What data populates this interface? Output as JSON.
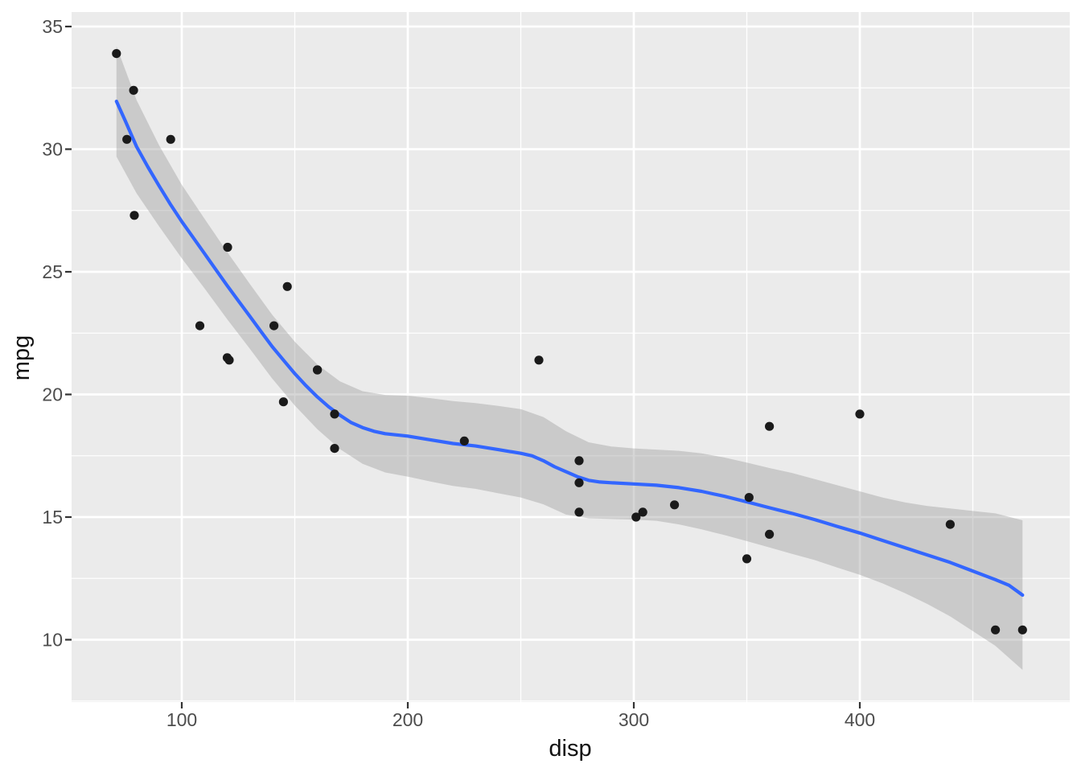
{
  "chart_data": {
    "type": "scatter",
    "title": "",
    "xlabel": "disp",
    "ylabel": "mpg",
    "xlim": [
      51.2,
      492.9
    ],
    "ylim": [
      7.46,
      35.59
    ],
    "grid": "on",
    "legend": "none",
    "x_major_ticks": [
      100,
      200,
      300,
      400
    ],
    "x_minor_ticks": [
      150,
      250,
      350,
      450
    ],
    "y_major_ticks": [
      10,
      15,
      20,
      25,
      30,
      35
    ],
    "y_minor_ticks": [
      7.5,
      12.5,
      17.5,
      22.5,
      27.5,
      32.5
    ],
    "points": [
      [
        160,
        21.0
      ],
      [
        160,
        21.0
      ],
      [
        108,
        22.8
      ],
      [
        258,
        21.4
      ],
      [
        360,
        18.7
      ],
      [
        225,
        18.1
      ],
      [
        360,
        14.3
      ],
      [
        146.7,
        24.4
      ],
      [
        140.8,
        22.8
      ],
      [
        167.6,
        19.2
      ],
      [
        167.6,
        17.8
      ],
      [
        275.8,
        16.4
      ],
      [
        275.8,
        17.3
      ],
      [
        275.8,
        15.2
      ],
      [
        472,
        10.4
      ],
      [
        460,
        10.4
      ],
      [
        440,
        14.7
      ],
      [
        78.7,
        32.4
      ],
      [
        75.7,
        30.4
      ],
      [
        71.1,
        33.9
      ],
      [
        120.1,
        21.5
      ],
      [
        318,
        15.5
      ],
      [
        304,
        15.2
      ],
      [
        350,
        13.3
      ],
      [
        400,
        19.2
      ],
      [
        79,
        27.3
      ],
      [
        120.3,
        26.0
      ],
      [
        95.1,
        30.4
      ],
      [
        351,
        15.8
      ],
      [
        145,
        19.7
      ],
      [
        301,
        15.0
      ],
      [
        121,
        21.4
      ]
    ],
    "smooth_line": [
      [
        71.1,
        31.95
      ],
      [
        75,
        31.15
      ],
      [
        80,
        30.1
      ],
      [
        85,
        29.28
      ],
      [
        90,
        28.5
      ],
      [
        95,
        27.75
      ],
      [
        100,
        27.05
      ],
      [
        105,
        26.4
      ],
      [
        110,
        25.75
      ],
      [
        115,
        25.1
      ],
      [
        120,
        24.45
      ],
      [
        125,
        23.82
      ],
      [
        130,
        23.2
      ],
      [
        135,
        22.57
      ],
      [
        140,
        21.95
      ],
      [
        145,
        21.4
      ],
      [
        150,
        20.85
      ],
      [
        155,
        20.35
      ],
      [
        160,
        19.9
      ],
      [
        165,
        19.5
      ],
      [
        170,
        19.15
      ],
      [
        175,
        18.85
      ],
      [
        180,
        18.65
      ],
      [
        185,
        18.5
      ],
      [
        190,
        18.4
      ],
      [
        195,
        18.35
      ],
      [
        200,
        18.3
      ],
      [
        210,
        18.15
      ],
      [
        220,
        18.0
      ],
      [
        230,
        17.9
      ],
      [
        240,
        17.75
      ],
      [
        250,
        17.6
      ],
      [
        255,
        17.5
      ],
      [
        260,
        17.3
      ],
      [
        265,
        17.05
      ],
      [
        270,
        16.85
      ],
      [
        275,
        16.65
      ],
      [
        280,
        16.5
      ],
      [
        285,
        16.43
      ],
      [
        290,
        16.4
      ],
      [
        300,
        16.35
      ],
      [
        310,
        16.3
      ],
      [
        320,
        16.2
      ],
      [
        330,
        16.05
      ],
      [
        340,
        15.85
      ],
      [
        350,
        15.62
      ],
      [
        360,
        15.38
      ],
      [
        370,
        15.15
      ],
      [
        380,
        14.9
      ],
      [
        390,
        14.62
      ],
      [
        400,
        14.35
      ],
      [
        410,
        14.05
      ],
      [
        420,
        13.75
      ],
      [
        430,
        13.45
      ],
      [
        440,
        13.15
      ],
      [
        450,
        12.8
      ],
      [
        460,
        12.45
      ],
      [
        466,
        12.22
      ],
      [
        472,
        11.82
      ]
    ],
    "ribbon": [
      [
        71.1,
        29.7,
        34.2
      ],
      [
        80,
        28.2,
        32.0
      ],
      [
        90,
        26.85,
        30.15
      ],
      [
        100,
        25.55,
        28.55
      ],
      [
        110,
        24.33,
        27.17
      ],
      [
        120,
        23.08,
        25.82
      ],
      [
        130,
        21.88,
        24.52
      ],
      [
        140,
        20.65,
        23.25
      ],
      [
        150,
        19.55,
        22.15
      ],
      [
        160,
        18.58,
        21.22
      ],
      [
        170,
        17.77,
        20.53
      ],
      [
        180,
        17.17,
        20.13
      ],
      [
        190,
        16.82,
        19.98
      ],
      [
        200,
        16.65,
        19.95
      ],
      [
        210,
        16.45,
        19.85
      ],
      [
        220,
        16.27,
        19.73
      ],
      [
        230,
        16.15,
        19.65
      ],
      [
        240,
        15.97,
        19.53
      ],
      [
        250,
        15.8,
        19.4
      ],
      [
        260,
        15.52,
        19.08
      ],
      [
        270,
        15.1,
        18.5
      ],
      [
        280,
        14.95,
        18.05
      ],
      [
        290,
        14.92,
        17.88
      ],
      [
        300,
        14.9,
        17.8
      ],
      [
        310,
        14.85,
        17.75
      ],
      [
        320,
        14.7,
        17.7
      ],
      [
        330,
        14.5,
        17.6
      ],
      [
        340,
        14.27,
        17.43
      ],
      [
        350,
        14.02,
        17.22
      ],
      [
        360,
        13.76,
        17.0
      ],
      [
        370,
        13.5,
        16.8
      ],
      [
        380,
        13.25,
        16.55
      ],
      [
        390,
        12.94,
        16.3
      ],
      [
        400,
        12.65,
        16.05
      ],
      [
        410,
        12.3,
        15.8
      ],
      [
        420,
        11.9,
        15.6
      ],
      [
        430,
        11.45,
        15.45
      ],
      [
        440,
        10.95,
        15.35
      ],
      [
        450,
        10.35,
        15.25
      ],
      [
        460,
        9.75,
        15.15
      ],
      [
        472,
        8.77,
        14.87
      ]
    ],
    "colors": {
      "panel_background": "#EBEBEB",
      "gridline": "#FFFFFF",
      "ribbon_fill": "#999999",
      "ribbon_opacity": 0.4,
      "smooth_line": "#3366FF",
      "point": "#1A1A1A",
      "tick_mark": "#333333",
      "tick_text": "#4D4D4D",
      "axis_title": "#111111"
    }
  }
}
